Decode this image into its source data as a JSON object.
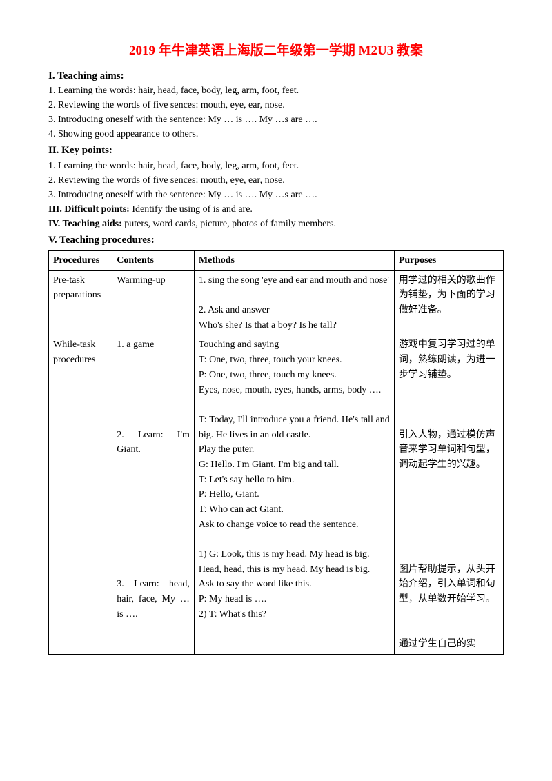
{
  "title": "2019 年牛津英语上海版二年级第一学期 M2U3 教案",
  "sections": {
    "teaching_aims": {
      "head": "I. Teaching aims:",
      "items": [
        "1. Learning the words: hair, head, face, body, leg, arm, foot, feet.",
        "2. Reviewing the words of five sences: mouth, eye, ear, nose.",
        "3. Introducing oneself with the sentence: My … is …. My …s are ….",
        "4. Showing good appearance to others."
      ]
    },
    "key_points": {
      "head": "II. Key points:",
      "items": [
        "1. Learning the words: hair, head, face, body, leg, arm, foot, feet.",
        "2. Reviewing the words of five sences: mouth, eye, ear, nose.",
        "3. Introducing oneself with the sentence: My … is …. My …s are …."
      ]
    },
    "difficult_points": {
      "head": "III. Difficult points: ",
      "body": "Identify the using of is and are."
    },
    "teaching_aids": {
      "head": "IV. Teaching aids: ",
      "body": "puters, word cards, picture, photos of family members."
    },
    "procedures_head": "V. Teaching procedures:"
  },
  "table": {
    "headers": [
      "Procedures",
      "Contents",
      "Methods",
      "Purposes"
    ],
    "rows": [
      {
        "procedures": "Pre-task preparations",
        "contents": "Warming-up",
        "methods": "1. sing the song 'eye and ear and mouth and nose'\n\n2. Ask and answer\nWho's she? Is that a boy? Is he tall?",
        "purposes": "用学过的相关的歌曲作为铺垫，为下面的学习做好准备。"
      },
      {
        "procedures": "While-task procedures",
        "contents": "1. a game\n\n\n\n\n\n2. Learn: I'm Giant.\n\n\n\n\n\n\n\n\n\n3. Learn: head, hair, face, My … is ….",
        "methods": "Touching and saying\nT: One, two, three, touch your knees.\nP: One, two, three, touch my knees.\nEyes, nose, mouth, eyes, hands, arms, body ….\n\nT: Today, I'll introduce you a friend. He's tall and big. He lives in an old castle.\nPlay the puter.\nG: Hello. I'm Giant. I'm big and tall.\nT: Let's say hello to him.\nP: Hello, Giant.\nT: Who can act Giant.\nAsk to change voice to read the sentence.\n\n1) G: Look, this is my head. My head is big.\nHead, head, this is my head. My head is big.\nAsk to say the word like this.\nP: My head is ….\n2) T: What's this?",
        "purposes": "游戏中复习学习过的单词，熟练朗读，为进一步学习铺垫。\n\n\n\n引入人物，通过模仿声音来学习单词和句型，调动起学生的兴趣。\n\n\n\n\n\n\n图片帮助提示，从头开始介绍，引入单词和句型，从单数开始学习。\n\n\n通过学生自己的实"
      }
    ]
  }
}
